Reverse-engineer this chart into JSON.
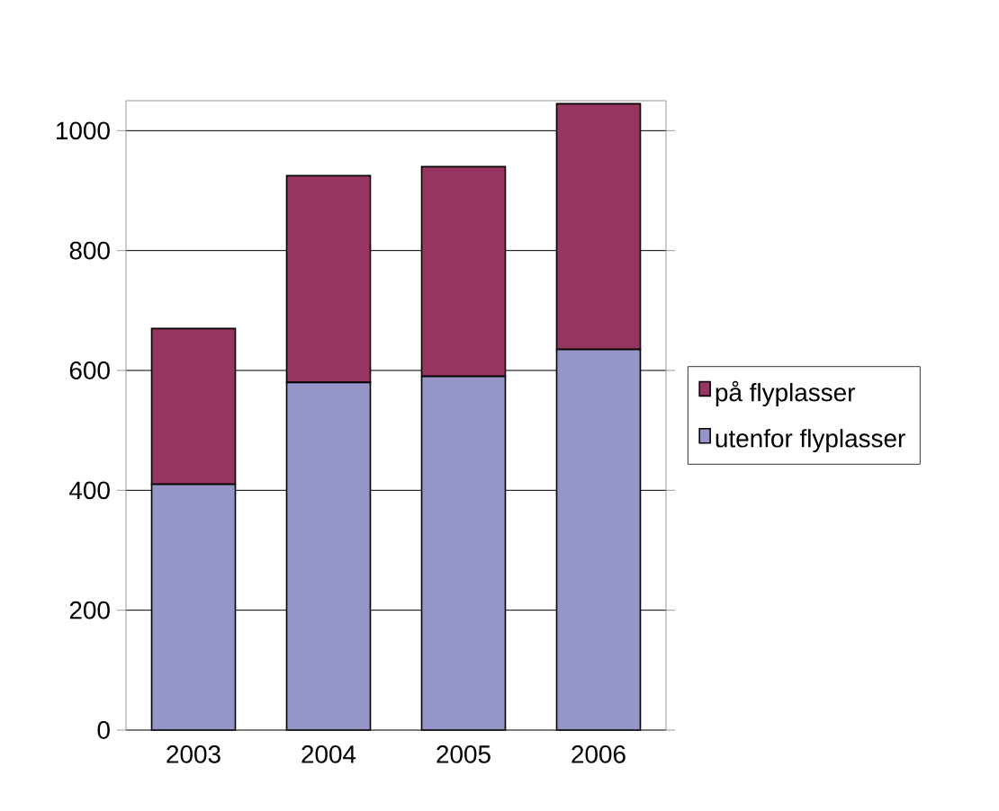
{
  "chart_data": {
    "type": "bar",
    "stacked": true,
    "categories": [
      "2003",
      "2004",
      "2005",
      "2006"
    ],
    "series": [
      {
        "name": "utenfor  flyplasser",
        "color": "#9595c8",
        "values": [
          410,
          580,
          590,
          635
        ]
      },
      {
        "name": "på flyplasser",
        "color": "#953560",
        "values": [
          260,
          345,
          350,
          410
        ]
      }
    ],
    "ylim": [
      0,
      1050
    ],
    "yticks": [
      0,
      200,
      400,
      600,
      800,
      1000
    ],
    "grid": "y",
    "legend": "right"
  }
}
